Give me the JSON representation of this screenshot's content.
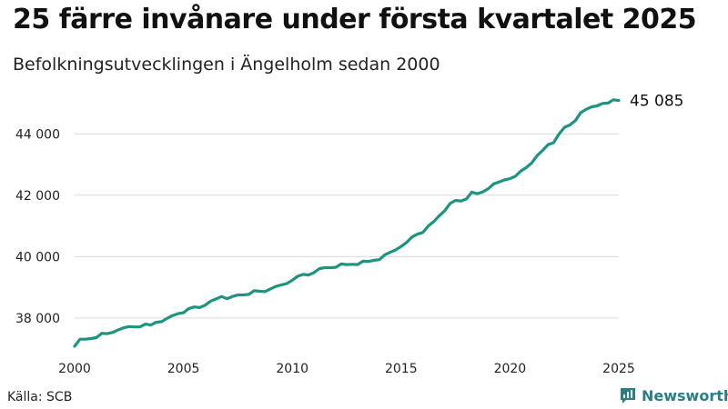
{
  "title": "25 färre invånare under första kvartalet 2025",
  "subtitle": "Befolkningsutvecklingen i Ängelholm sedan 2000",
  "source": "Källa: SCB",
  "brand": "Newsworthy",
  "colors": {
    "line": "#1e9480",
    "grid": "#d9d9d9",
    "brand": "#2a7f85"
  },
  "icons": {
    "brand": "bar-chart-speech-icon"
  },
  "chart_data": {
    "type": "line",
    "title": "25 färre invånare under första kvartalet 2025",
    "subtitle": "Befolkningsutvecklingen i Ängelholm sedan 2000",
    "xlabel": "",
    "ylabel": "",
    "x_ticks": [
      2000,
      2005,
      2010,
      2015,
      2020,
      2025
    ],
    "x_range": [
      2000,
      2025
    ],
    "y_ticks": [
      38000,
      40000,
      42000,
      44000
    ],
    "y_tick_labels": [
      "38 000",
      "40 000",
      "42 000",
      "44 000"
    ],
    "ylim": [
      36900,
      45400
    ],
    "grid": "horizontal",
    "end_label": "45 085",
    "series": [
      {
        "x": [
          2000.0,
          2000.25,
          2000.5,
          2000.75,
          2001.0,
          2001.25,
          2001.5,
          2001.75,
          2002.0,
          2002.25,
          2002.5,
          2002.75,
          2003.0,
          2003.25,
          2003.5,
          2003.75,
          2004.0,
          2004.25,
          2004.5,
          2004.75,
          2005.0,
          2005.25,
          2005.5,
          2005.75,
          2006.0,
          2006.25,
          2006.5,
          2006.75,
          2007.0,
          2007.25,
          2007.5,
          2007.75,
          2008.0,
          2008.25,
          2008.5,
          2008.75,
          2009.0,
          2009.25,
          2009.5,
          2009.75,
          2010.0,
          2010.25,
          2010.5,
          2010.75,
          2011.0,
          2011.25,
          2011.5,
          2011.75,
          2012.0,
          2012.25,
          2012.5,
          2012.75,
          2013.0,
          2013.25,
          2013.5,
          2013.75,
          2014.0,
          2014.25,
          2014.5,
          2014.75,
          2015.0,
          2015.25,
          2015.5,
          2015.75,
          2016.0,
          2016.25,
          2016.5,
          2016.75,
          2017.0,
          2017.25,
          2017.5,
          2017.75,
          2018.0,
          2018.25,
          2018.5,
          2018.75,
          2019.0,
          2019.25,
          2019.5,
          2019.75,
          2020.0,
          2020.25,
          2020.5,
          2020.75,
          2021.0,
          2021.25,
          2021.5,
          2021.75,
          2022.0,
          2022.25,
          2022.5,
          2022.75,
          2023.0,
          2023.25,
          2023.5,
          2023.75,
          2024.0,
          2024.25,
          2024.5,
          2024.75,
          2025.0
        ],
        "values": [
          37080,
          37310,
          37310,
          37330,
          37360,
          37500,
          37490,
          37530,
          37610,
          37680,
          37720,
          37710,
          37710,
          37800,
          37770,
          37860,
          37880,
          37990,
          38080,
          38140,
          38170,
          38310,
          38360,
          38340,
          38420,
          38550,
          38620,
          38700,
          38630,
          38700,
          38750,
          38750,
          38770,
          38890,
          38870,
          38860,
          38950,
          39030,
          39080,
          39120,
          39230,
          39360,
          39420,
          39400,
          39480,
          39610,
          39640,
          39640,
          39650,
          39760,
          39740,
          39750,
          39740,
          39850,
          39840,
          39880,
          39900,
          40060,
          40140,
          40220,
          40330,
          40460,
          40640,
          40730,
          40790,
          41000,
          41140,
          41330,
          41490,
          41730,
          41830,
          41810,
          41880,
          42100,
          42050,
          42110,
          42210,
          42370,
          42430,
          42500,
          42540,
          42620,
          42790,
          42900,
          43050,
          43290,
          43460,
          43650,
          43710,
          43990,
          44210,
          44290,
          44430,
          44690,
          44800,
          44880,
          44910,
          44990,
          45000,
          45110,
          45085
        ]
      }
    ]
  }
}
